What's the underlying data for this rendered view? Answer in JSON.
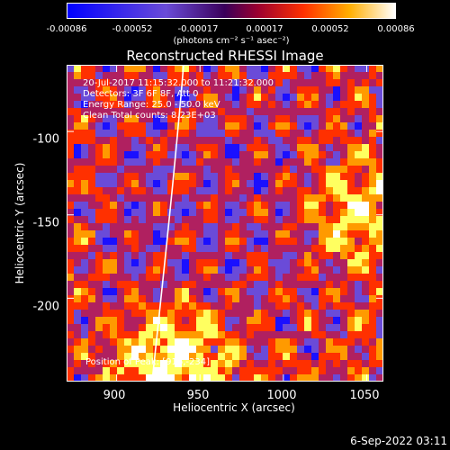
{
  "colorbar": {
    "ticks": [
      "-0.00086",
      "-0.00052",
      "-0.00017",
      "0.00017",
      "0.00052",
      "0.00086"
    ],
    "unit": "(photons cm⁻² s⁻¹ asec⁻²)"
  },
  "annotations": {
    "time": "20-Jul-2017 11:15:32.000 to 11:21:32.000",
    "detectors": "Detectors: 3F 6F 8F, Att 0",
    "energy": "Energy Range: 25.0 - 50.0 keV",
    "clean": "Clean     Total counts: 8.23E+03",
    "peak": "Position of Peak: [916,-234]"
  },
  "timestamp": "6-Sep-2022 03:11",
  "chart_data": {
    "type": "heatmap",
    "title": "Reconstructed RHESSI Image",
    "xlabel": "Heliocentric X (arcsec)",
    "ylabel": "Heliocentric Y (arcsec)",
    "xlim": [
      870,
      1060
    ],
    "ylim": [
      -250,
      -60
    ],
    "xticks": [
      900,
      950,
      1000,
      1050
    ],
    "yticks": [
      -100,
      -150,
      -200
    ],
    "colorbar_range": [
      -0.00086,
      0.00086
    ],
    "peak": [
      916,
      -234
    ],
    "colormap": [
      "#1a10ff",
      "#6a4bd8",
      "#b02060",
      "#ff3000",
      "#ff9a00",
      "#ffff60",
      "#ffffff"
    ]
  }
}
